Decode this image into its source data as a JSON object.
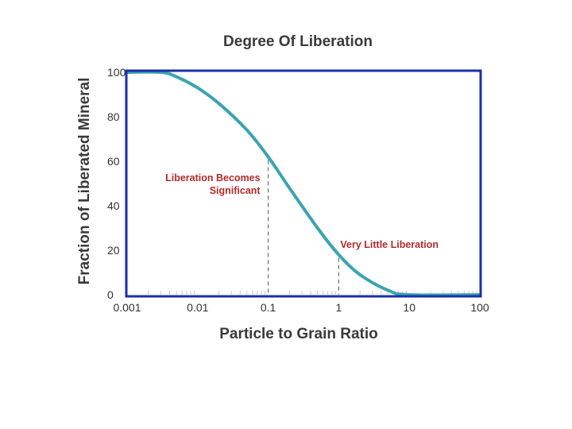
{
  "chart_data": {
    "type": "line",
    "title": "Degree Of Liberation",
    "xlabel": "Particle to Grain Ratio",
    "ylabel": "Fraction of Liberated Mineral",
    "x_scale": "log",
    "xlim": [
      0.001,
      100
    ],
    "ylim": [
      0,
      100
    ],
    "x_ticks": [
      {
        "value": 0.001,
        "label": "0.001"
      },
      {
        "value": 0.01,
        "label": "0.01"
      },
      {
        "value": 0.1,
        "label": "0.1"
      },
      {
        "value": 1,
        "label": "1"
      },
      {
        "value": 10,
        "label": "10"
      },
      {
        "value": 100,
        "label": "100"
      }
    ],
    "y_ticks": [
      {
        "value": 0,
        "label": "0"
      },
      {
        "value": 20,
        "label": "20"
      },
      {
        "value": 40,
        "label": "40"
      },
      {
        "value": 60,
        "label": "60"
      },
      {
        "value": 80,
        "label": "80"
      },
      {
        "value": 100,
        "label": "100"
      }
    ],
    "grid": false,
    "series": [
      {
        "color": "#3ba3b3",
        "points": [
          {
            "x": 0.001,
            "y": 100
          },
          {
            "x": 0.003,
            "y": 100
          },
          {
            "x": 0.005,
            "y": 98
          },
          {
            "x": 0.01,
            "y": 93
          },
          {
            "x": 0.02,
            "y": 86
          },
          {
            "x": 0.05,
            "y": 74
          },
          {
            "x": 0.1,
            "y": 62
          },
          {
            "x": 0.2,
            "y": 48
          },
          {
            "x": 0.5,
            "y": 30
          },
          {
            "x": 1,
            "y": 18
          },
          {
            "x": 2,
            "y": 9
          },
          {
            "x": 5,
            "y": 2
          },
          {
            "x": 10,
            "y": 0
          },
          {
            "x": 100,
            "y": 0
          }
        ]
      }
    ],
    "annotations": [
      {
        "x": 0.1,
        "lines": [
          "Liberation Becomes",
          "Significant"
        ],
        "color": "#b52a2a"
      },
      {
        "x": 1,
        "lines": [
          "Very Little Liberation"
        ],
        "color": "#b52a2a"
      }
    ],
    "frame_color": "#1a2fa8"
  }
}
